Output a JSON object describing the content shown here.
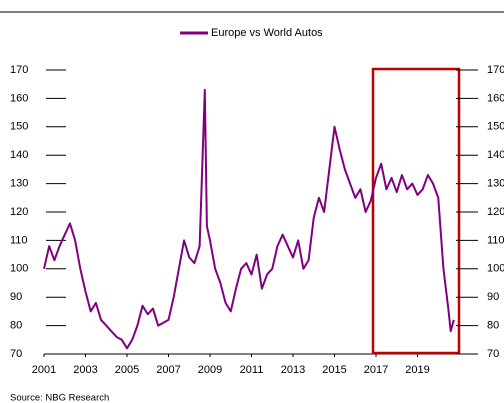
{
  "chart_data": {
    "type": "line",
    "legend": "top",
    "x": [
      2001.0,
      2001.25,
      2001.5,
      2001.75,
      2002.0,
      2002.25,
      2002.5,
      2002.75,
      2003.0,
      2003.25,
      2003.5,
      2003.75,
      2004.0,
      2004.25,
      2004.5,
      2004.75,
      2005.0,
      2005.25,
      2005.5,
      2005.75,
      2006.0,
      2006.25,
      2006.5,
      2006.75,
      2007.0,
      2007.25,
      2007.5,
      2007.75,
      2008.0,
      2008.25,
      2008.5,
      2008.75,
      2008.85,
      2009.0,
      2009.25,
      2009.5,
      2009.75,
      2010.0,
      2010.25,
      2010.5,
      2010.75,
      2011.0,
      2011.25,
      2011.5,
      2011.75,
      2012.0,
      2012.25,
      2012.5,
      2012.75,
      2013.0,
      2013.25,
      2013.5,
      2013.75,
      2014.0,
      2014.25,
      2014.5,
      2014.75,
      2015.0,
      2015.25,
      2015.5,
      2015.75,
      2016.0,
      2016.25,
      2016.5,
      2016.75,
      2017.0,
      2017.25,
      2017.5,
      2017.75,
      2018.0,
      2018.25,
      2018.5,
      2018.75,
      2019.0,
      2019.25,
      2019.5,
      2019.75,
      2020.0,
      2020.25,
      2020.5,
      2020.6,
      2020.75
    ],
    "series": [
      {
        "name": "Europe vs World Autos",
        "color": "#800080",
        "values": [
          100,
          108,
          103,
          108,
          112,
          116,
          110,
          100,
          92,
          85,
          88,
          82,
          80,
          78,
          76,
          75,
          72,
          75,
          80,
          87,
          84,
          86,
          80,
          81,
          82,
          90,
          100,
          110,
          104,
          102,
          108,
          163,
          115,
          110,
          100,
          95,
          88,
          85,
          93,
          100,
          102,
          98,
          105,
          93,
          98,
          100,
          108,
          112,
          108,
          104,
          110,
          100,
          103,
          118,
          125,
          120,
          135,
          150,
          142,
          135,
          130,
          125,
          128,
          120,
          124,
          132,
          137,
          128,
          132,
          127,
          133,
          128,
          130,
          126,
          128,
          133,
          130,
          125,
          100,
          85,
          78,
          82
        ]
      }
    ],
    "xlim": [
      2001,
      2021
    ],
    "xticks": [
      2001,
      2003,
      2005,
      2007,
      2009,
      2011,
      2013,
      2015,
      2017,
      2019
    ],
    "ylim": [
      70,
      170
    ],
    "yticks": [
      70,
      80,
      90,
      100,
      110,
      120,
      130,
      140,
      150,
      160,
      170
    ],
    "y2lim": [
      70,
      170
    ],
    "y2ticks": [
      70,
      80,
      90,
      100,
      110,
      120,
      130,
      140,
      150,
      160,
      170
    ],
    "source": "Source: NBG Research"
  }
}
